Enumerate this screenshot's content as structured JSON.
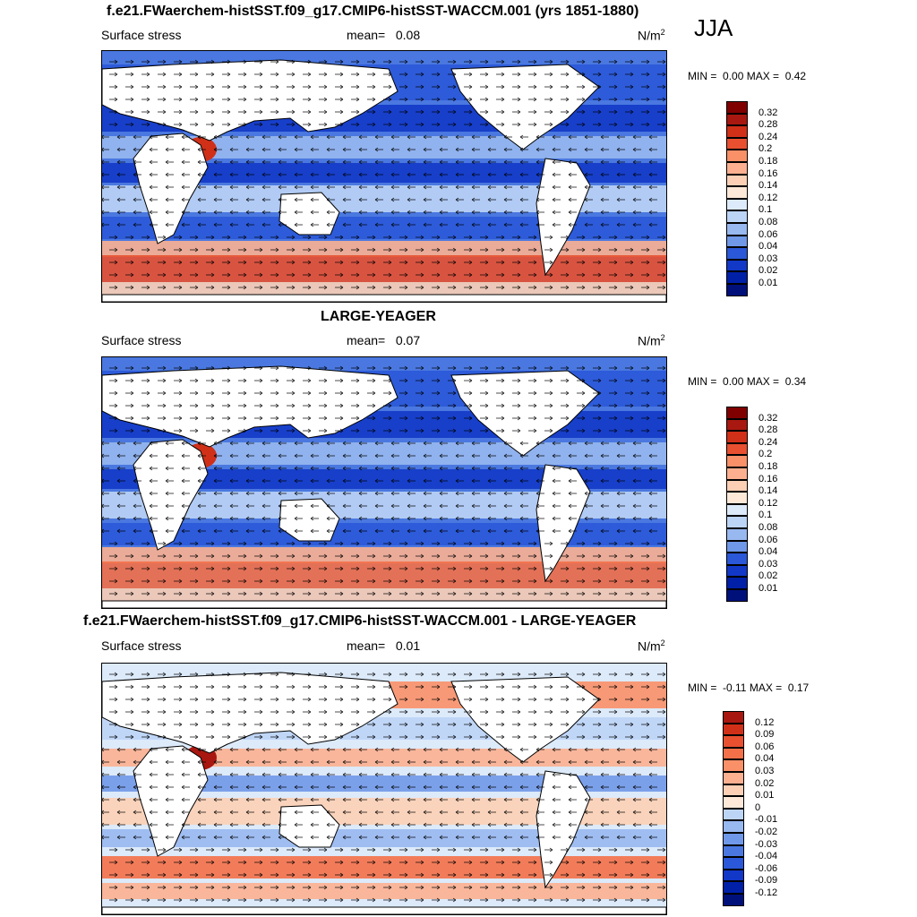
{
  "season_label": "JJA",
  "palette": {
    "pos": [
      "#fee8d8",
      "#fdd0b5",
      "#fcb090",
      "#f99068",
      "#f47048",
      "#e85030",
      "#d03018",
      "#a81810",
      "#800000"
    ],
    "neg": [
      "#dceafa",
      "#bcd4f6",
      "#98b8f0",
      "#7098e8",
      "#4a78e0",
      "#2a58d8",
      "#1238c8",
      "#0020a8",
      "#00107a"
    ]
  },
  "panels": [
    {
      "title": "f.e21.FWaerchem-histSST.f09_g17.CMIP6-histSST-WACCM.001 (yrs 1851-1880)",
      "variable": "Surface stress",
      "mean_label": "mean=",
      "mean_value": "0.08",
      "units_base": "N/m",
      "units_exp": "2",
      "min_label": "MIN =",
      "min_value": "0.00",
      "max_label": "MAX =",
      "max_value": "0.42",
      "colorbar_ticks": [
        "0.32",
        "0.28",
        "0.24",
        "0.2",
        "0.18",
        "0.16",
        "0.14",
        "0.12",
        "0.1",
        "0.08",
        "0.06",
        "0.04",
        "0.03",
        "0.02",
        "0.01"
      ]
    },
    {
      "title": "LARGE-YEAGER",
      "variable": "Surface stress",
      "mean_label": "mean=",
      "mean_value": "0.07",
      "units_base": "N/m",
      "units_exp": "2",
      "min_label": "MIN =",
      "min_value": "0.00",
      "max_label": "MAX =",
      "max_value": "0.34",
      "colorbar_ticks": [
        "0.32",
        "0.28",
        "0.24",
        "0.2",
        "0.18",
        "0.16",
        "0.14",
        "0.12",
        "0.1",
        "0.08",
        "0.06",
        "0.04",
        "0.03",
        "0.02",
        "0.01"
      ]
    },
    {
      "title": "f.e21.FWaerchem-histSST.f09_g17.CMIP6-histSST-WACCM.001 - LARGE-YEAGER",
      "variable": "Surface stress",
      "mean_label": "mean=",
      "mean_value": "0.01",
      "units_base": "N/m",
      "units_exp": "2",
      "min_label": "MIN =",
      "min_value": "-0.11",
      "max_label": "MAX =",
      "max_value": "0.17",
      "colorbar_ticks": [
        "0.12",
        "0.09",
        "0.06",
        "0.04",
        "0.03",
        "0.02",
        "0.01",
        "0",
        "-0.01",
        "-0.02",
        "-0.03",
        "-0.04",
        "-0.06",
        "-0.09",
        "-0.12"
      ]
    }
  ],
  "chart_data": [
    {
      "type": "heatmap",
      "title": "f.e21.FWaerchem-histSST.f09_g17.CMIP6-histSST-WACCM.001 (yrs 1851-1880)",
      "variable": "Surface stress",
      "units": "N/m^2",
      "season": "JJA",
      "mean": 0.08,
      "min": 0.0,
      "max": 0.42,
      "levels": [
        0.01,
        0.02,
        0.03,
        0.04,
        0.06,
        0.08,
        0.1,
        0.12,
        0.14,
        0.16,
        0.18,
        0.2,
        0.24,
        0.28,
        0.32
      ],
      "overlay": "wind stress vectors"
    },
    {
      "type": "heatmap",
      "title": "LARGE-YEAGER",
      "variable": "Surface stress",
      "units": "N/m^2",
      "season": "JJA",
      "mean": 0.07,
      "min": 0.0,
      "max": 0.34,
      "levels": [
        0.01,
        0.02,
        0.03,
        0.04,
        0.06,
        0.08,
        0.1,
        0.12,
        0.14,
        0.16,
        0.18,
        0.2,
        0.24,
        0.28,
        0.32
      ],
      "overlay": "wind stress vectors"
    },
    {
      "type": "heatmap",
      "title": "f.e21.FWaerchem-histSST.f09_g17.CMIP6-histSST-WACCM.001 - LARGE-YEAGER",
      "variable": "Surface stress",
      "units": "N/m^2",
      "season": "JJA",
      "mean": 0.01,
      "min": -0.11,
      "max": 0.17,
      "levels": [
        -0.12,
        -0.09,
        -0.06,
        -0.04,
        -0.03,
        -0.02,
        -0.01,
        0,
        0.01,
        0.02,
        0.03,
        0.04,
        0.06,
        0.09,
        0.12
      ],
      "overlay": "wind stress vectors"
    }
  ]
}
